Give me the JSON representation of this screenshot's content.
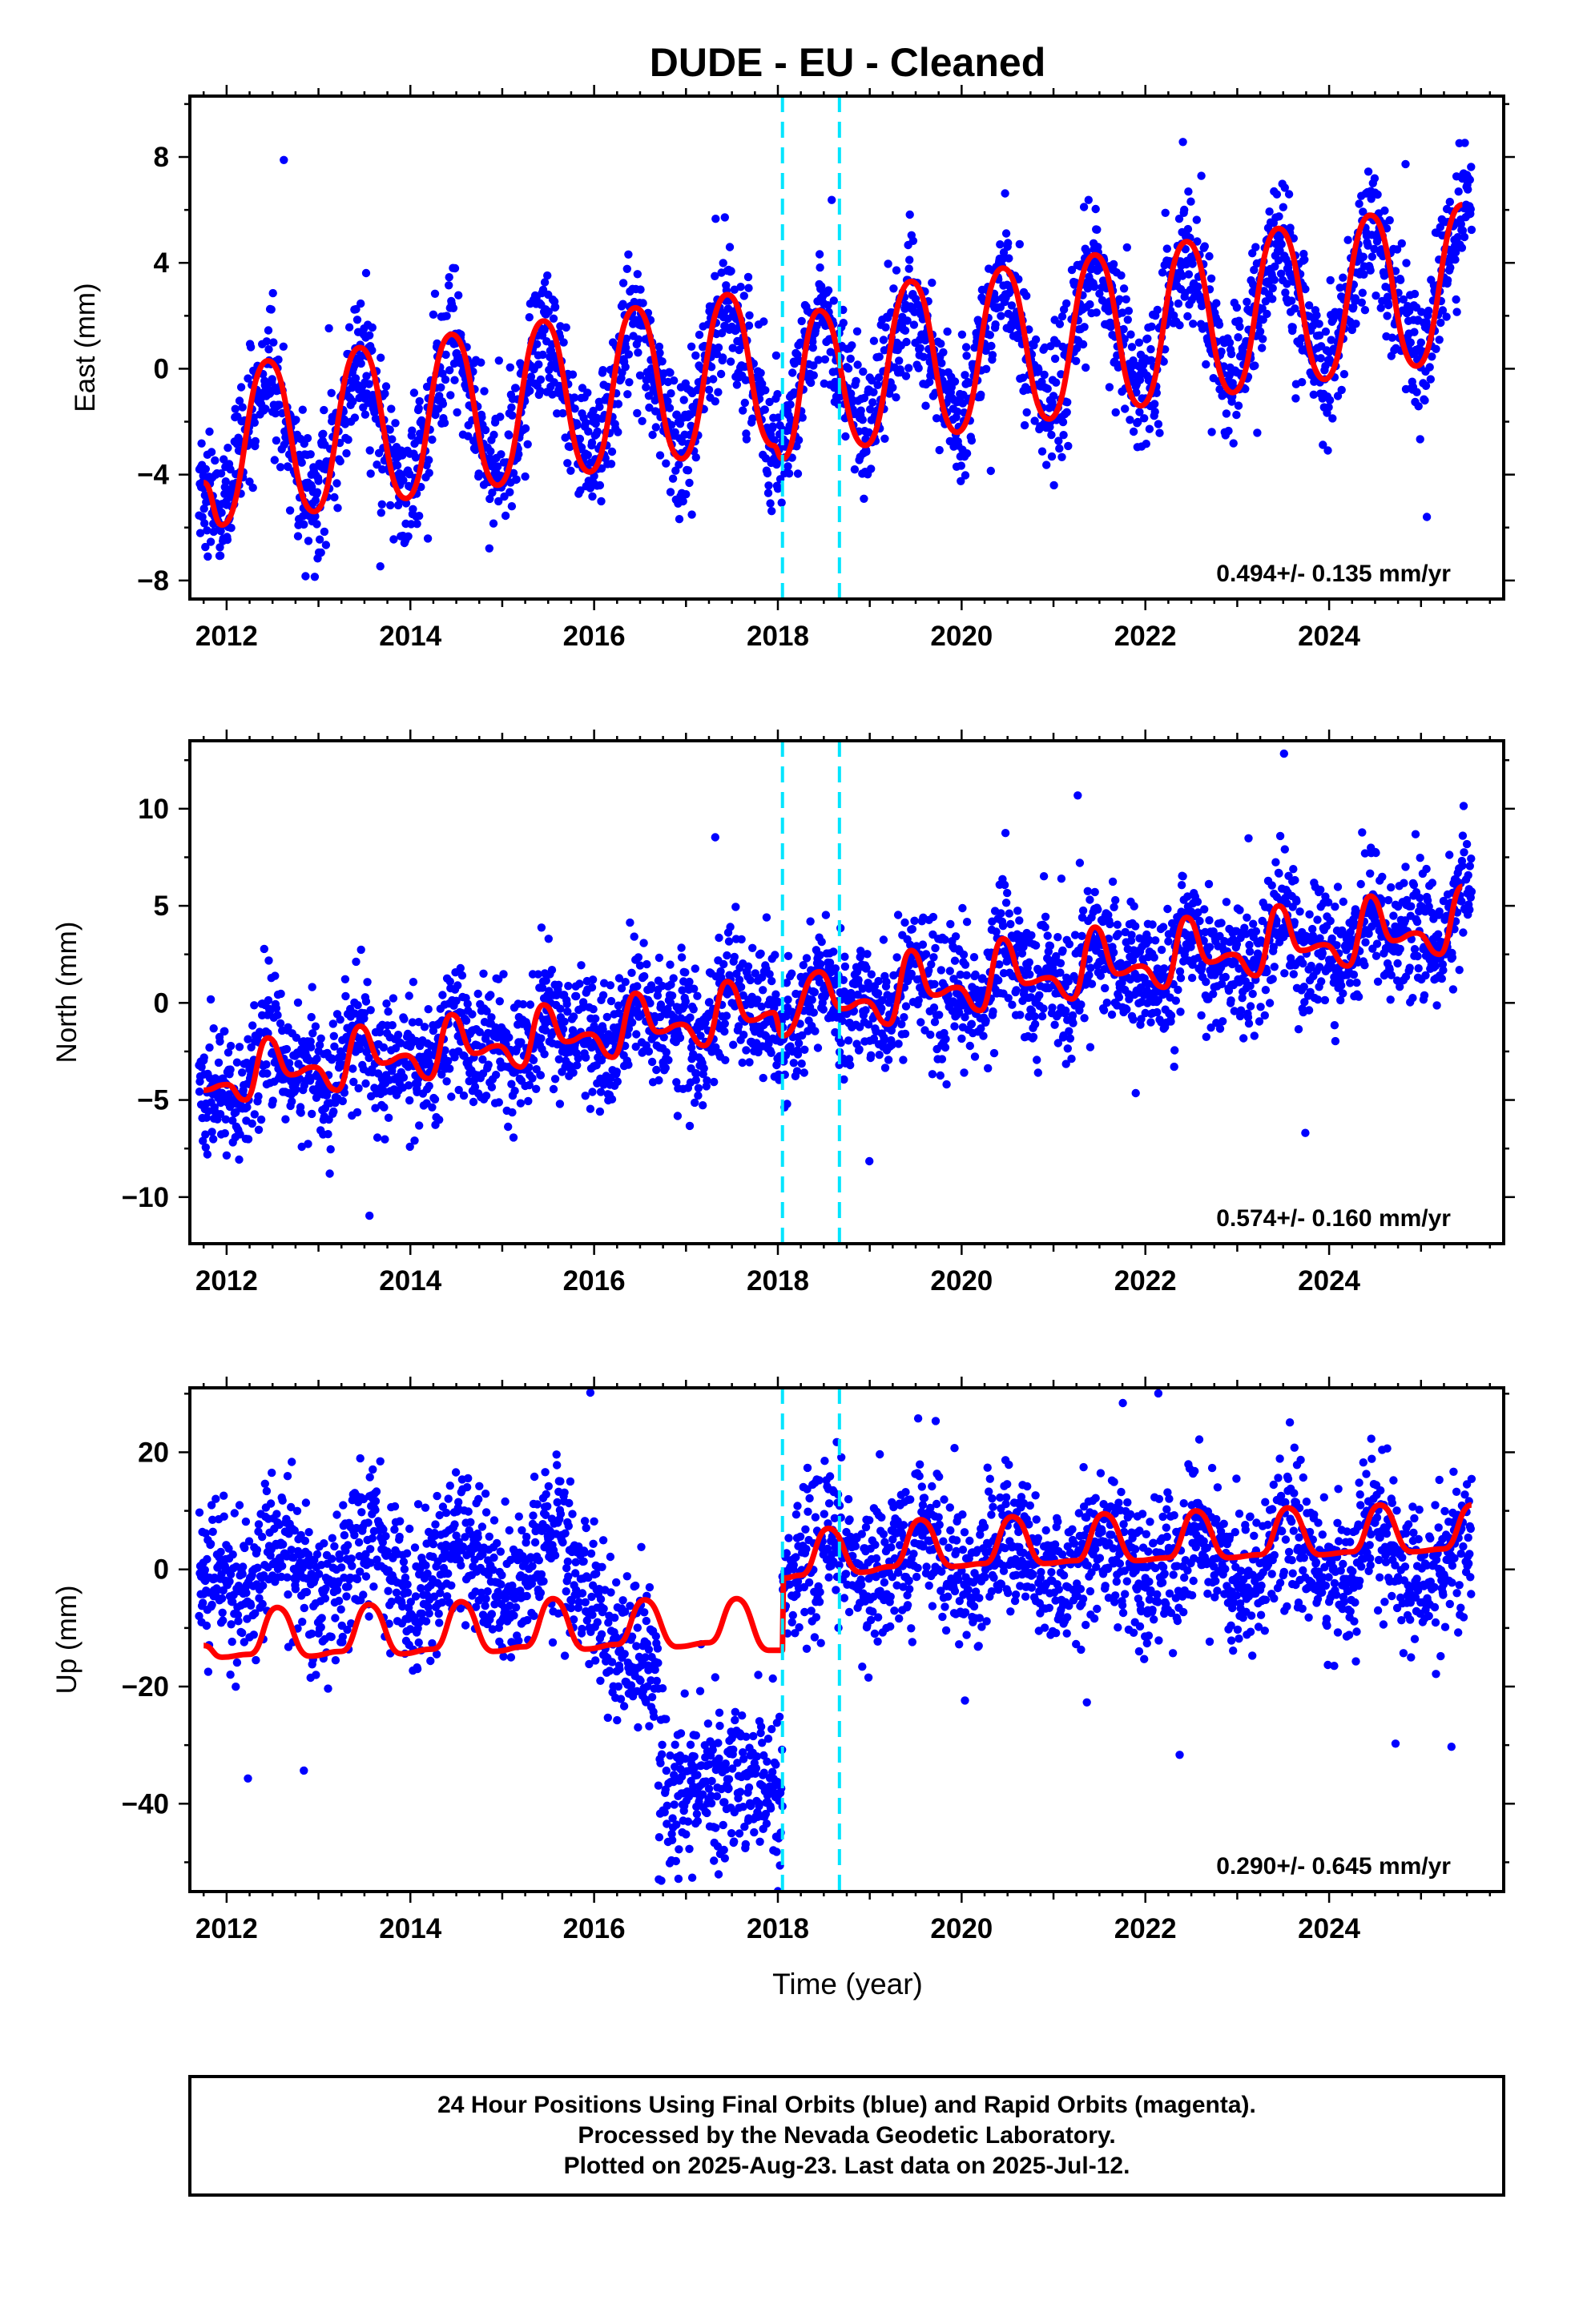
{
  "title": "DUDE  - EU - Cleaned",
  "xlabel": "Time (year)",
  "colors": {
    "points": "#0000ff",
    "model": "#ff0000",
    "breaks": "#00e5ff",
    "frame": "#000000"
  },
  "caption": {
    "line1": "24 Hour Positions Using Final Orbits (blue) and Rapid Orbits (magenta).",
    "line2": "Processed by the Nevada Geodetic Laboratory.",
    "line3": "Plotted on 2025-Aug-23. Last data on 2025-Jul-12."
  },
  "chart_data": [
    {
      "type": "scatter",
      "component": "east",
      "ylabel": "East (mm)",
      "rate": "0.494+/- 0.135 mm/yr",
      "xlim": [
        2011.6,
        2025.9
      ],
      "ylim": [
        -8.7,
        10.3
      ],
      "xticks": [
        2012,
        2014,
        2016,
        2018,
        2020,
        2022,
        2024
      ],
      "xtick_labels": [
        "2012",
        "2014",
        "2016",
        "2018",
        "2020",
        "2022",
        "2024"
      ],
      "yticks": [
        -8,
        -4,
        0,
        4,
        8
      ],
      "ytick_labels": [
        "−8",
        "−4",
        "0",
        "4",
        "8"
      ],
      "breaks": [
        2018.05,
        2018.67
      ],
      "grid": false,
      "series": [
        {
          "role": "daily positions (blue)",
          "x_range": [
            2011.7,
            2025.55
          ],
          "trend": {
            "x": [
              2011.7,
              2025.55
            ],
            "y": [
              -4.3,
              3.2
            ]
          },
          "seasonal_amplitude": 3.0,
          "scatter_sd": 1.2
        },
        {
          "role": "model (red)",
          "x": [
            2011.75,
            2011.95,
            2012.45,
            2012.95,
            2013.45,
            2013.95,
            2014.45,
            2014.95,
            2015.45,
            2015.95,
            2016.45,
            2016.95,
            2017.45,
            2017.95,
            2018.05,
            2018.45,
            2018.95,
            2019.45,
            2019.95,
            2020.45,
            2020.95,
            2021.45,
            2021.95,
            2022.45,
            2022.95,
            2023.45,
            2023.95,
            2024.45,
            2024.95,
            2025.45
          ],
          "y": [
            -4.3,
            -5.9,
            0.3,
            -5.4,
            0.8,
            -4.9,
            1.3,
            -4.4,
            1.8,
            -3.9,
            2.3,
            -3.4,
            2.8,
            -2.9,
            -3.4,
            2.2,
            -2.9,
            3.3,
            -2.4,
            3.8,
            -1.9,
            4.3,
            -1.4,
            4.8,
            -0.9,
            5.3,
            -0.4,
            5.8,
            0.1,
            6.2
          ]
        }
      ]
    },
    {
      "type": "scatter",
      "component": "north",
      "ylabel": "North (mm)",
      "rate": "0.574+/- 0.160 mm/yr",
      "xlim": [
        2011.6,
        2025.9
      ],
      "ylim": [
        -12.4,
        13.5
      ],
      "xticks": [
        2012,
        2014,
        2016,
        2018,
        2020,
        2022,
        2024
      ],
      "xtick_labels": [
        "2012",
        "2014",
        "2016",
        "2018",
        "2020",
        "2022",
        "2024"
      ],
      "yticks": [
        -10,
        -5,
        0,
        5,
        10
      ],
      "ytick_labels": [
        "−10",
        "−5",
        "0",
        "5",
        "10"
      ],
      "breaks": [
        2018.05,
        2018.67
      ],
      "grid": false,
      "series": [
        {
          "role": "daily positions (blue)",
          "x_range": [
            2011.7,
            2025.55
          ],
          "trend": {
            "x": [
              2011.7,
              2025.55
            ],
            "y": [
              -4.6,
              4.6
            ]
          },
          "seasonal_amplitude": 1.3,
          "scatter_sd": 1.6
        },
        {
          "role": "model (red)",
          "x": [
            2011.75,
            2012.0,
            2012.2,
            2012.45,
            2012.7,
            2012.95,
            2013.2,
            2013.45,
            2013.7,
            2013.95,
            2014.2,
            2014.45,
            2014.7,
            2014.95,
            2015.2,
            2015.45,
            2015.7,
            2015.95,
            2016.2,
            2016.45,
            2016.7,
            2016.95,
            2017.2,
            2017.45,
            2017.7,
            2017.95,
            2018.05,
            2018.45,
            2018.7,
            2018.95,
            2019.2,
            2019.45,
            2019.7,
            2019.95,
            2020.2,
            2020.45,
            2020.7,
            2020.95,
            2021.2,
            2021.45,
            2021.7,
            2021.95,
            2022.2,
            2022.45,
            2022.7,
            2022.95,
            2023.2,
            2023.45,
            2023.7,
            2023.95,
            2024.2,
            2024.45,
            2024.7,
            2024.95,
            2025.2,
            2025.45
          ],
          "y": [
            -4.5,
            -4.2,
            -5.0,
            -1.8,
            -3.7,
            -3.3,
            -4.5,
            -1.2,
            -3.1,
            -2.7,
            -3.9,
            -0.6,
            -2.6,
            -2.2,
            -3.3,
            -0.1,
            -2.0,
            -1.6,
            -2.8,
            0.5,
            -1.5,
            -1.1,
            -2.2,
            1.1,
            -0.9,
            -0.5,
            -1.7,
            1.6,
            -0.3,
            0.1,
            -1.1,
            2.7,
            0.4,
            0.8,
            -0.4,
            3.3,
            1.0,
            1.3,
            0.2,
            3.9,
            1.5,
            1.9,
            0.8,
            4.4,
            2.1,
            2.5,
            1.4,
            5.0,
            2.7,
            3.0,
            1.9,
            5.5,
            3.2,
            3.6,
            2.5,
            6.0
          ]
        }
      ]
    },
    {
      "type": "scatter",
      "component": "up",
      "ylabel": "Up (mm)",
      "rate": "0.290+/- 0.645 mm/yr",
      "xlim": [
        2011.6,
        2025.9
      ],
      "ylim": [
        -55,
        31
      ],
      "xticks": [
        2012,
        2014,
        2016,
        2018,
        2020,
        2022,
        2024
      ],
      "xtick_labels": [
        "2012",
        "2014",
        "2016",
        "2018",
        "2020",
        "2022",
        "2024"
      ],
      "yticks": [
        -40,
        -20,
        0,
        20
      ],
      "ytick_labels": [
        "−40",
        "−20",
        "0",
        "20"
      ],
      "breaks": [
        2018.05,
        2018.67
      ],
      "grid": false,
      "series": [
        {
          "role": "daily positions (blue)",
          "segments": [
            {
              "x_range": [
                2011.7,
                2016.1
              ],
              "level": 0,
              "seasonal_amplitude": 5,
              "scatter_sd": 6
            },
            {
              "x_range": [
                2016.1,
                2016.7
              ],
              "level": -15,
              "seasonal_amplitude": 0,
              "scatter_sd": 6
            },
            {
              "x_range": [
                2016.7,
                2018.05
              ],
              "level": -36,
              "seasonal_amplitude": 0,
              "scatter_sd": 7
            },
            {
              "x_range": [
                2018.05,
                2025.55
              ],
              "level": 2,
              "seasonal_amplitude": 4,
              "scatter_sd": 6
            }
          ]
        },
        {
          "role": "model (red)",
          "x": [
            2011.75,
            2011.95,
            2012.25,
            2012.55,
            2012.9,
            2013.25,
            2013.55,
            2013.9,
            2014.25,
            2014.55,
            2014.9,
            2015.25,
            2015.55,
            2015.9,
            2016.25,
            2016.55,
            2016.9,
            2017.25,
            2017.55,
            2017.9,
            2018.05,
            2018.06,
            2018.25,
            2018.55,
            2018.9,
            2019.25,
            2019.55,
            2019.9,
            2020.25,
            2020.55,
            2020.9,
            2021.25,
            2021.55,
            2021.9,
            2022.25,
            2022.55,
            2022.9,
            2023.25,
            2023.55,
            2023.9,
            2024.25,
            2024.55,
            2024.9,
            2025.25,
            2025.55
          ],
          "y": [
            -13.0,
            -15.0,
            -14.5,
            -6.5,
            -14.8,
            -14.0,
            -6.0,
            -14.4,
            -13.6,
            -5.5,
            -14.0,
            -13.2,
            -5.0,
            -13.6,
            -12.8,
            -5.2,
            -13.2,
            -12.5,
            -5.0,
            -13.8,
            -13.8,
            -1.5,
            -1.0,
            7.0,
            -0.5,
            0.5,
            8.5,
            0.5,
            1.0,
            9.0,
            1.0,
            1.5,
            9.5,
            1.5,
            2.0,
            10.0,
            2.0,
            2.5,
            10.5,
            2.5,
            3.0,
            11.0,
            3.0,
            3.5,
            11.0
          ]
        }
      ]
    }
  ]
}
